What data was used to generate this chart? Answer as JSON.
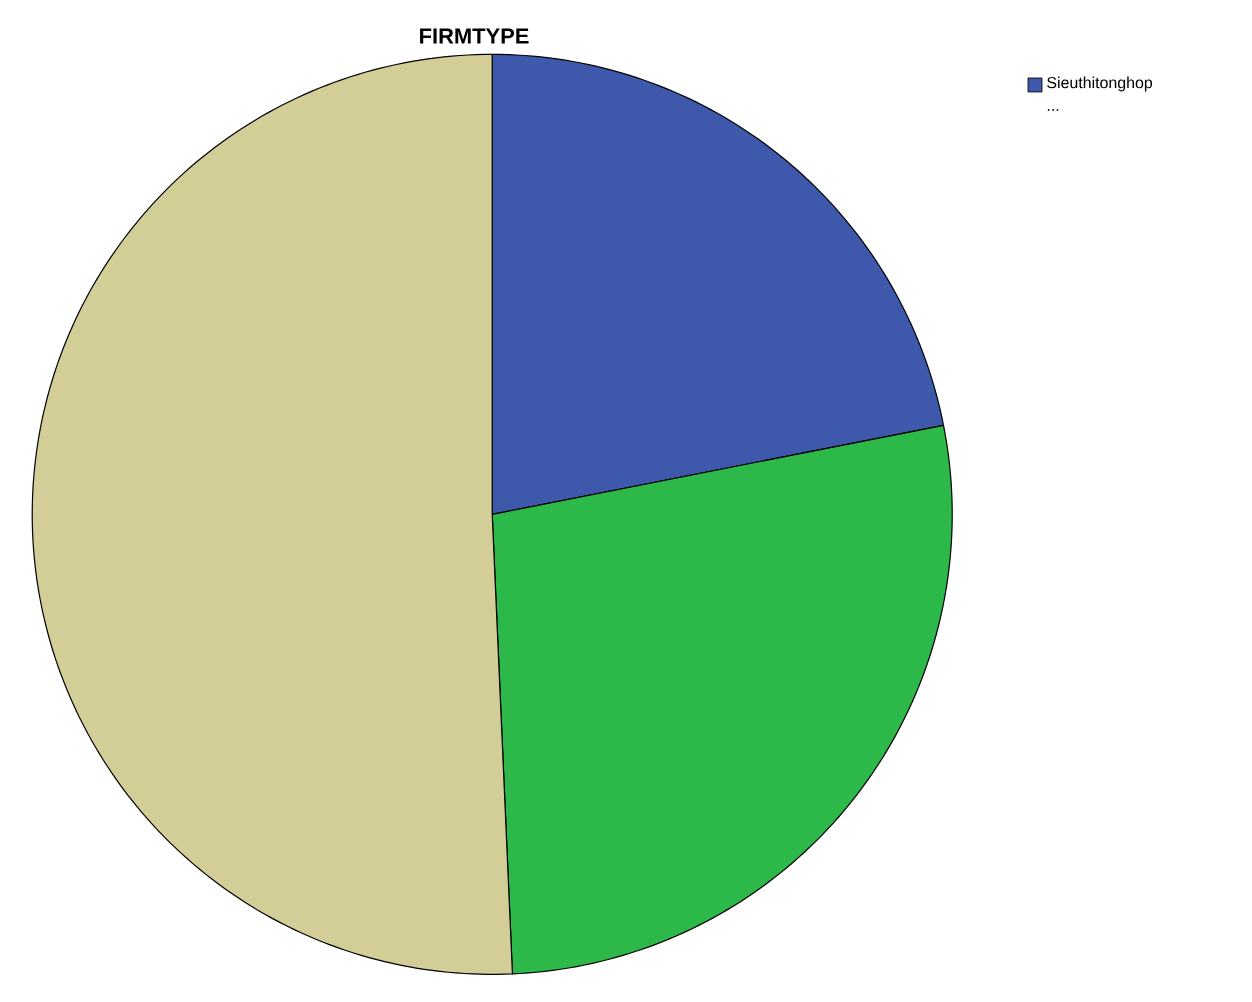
{
  "chart_data": {
    "type": "pie",
    "title": "FIRMTYPE",
    "categories": [
      "Sieuthitonghop",
      null,
      null
    ],
    "values": [
      21.9,
      27.4,
      50.7
    ],
    "colors": [
      "#3e58ac",
      "#2db84a",
      "#d3ce97"
    ],
    "legend": "top right",
    "annotations": [
      "..."
    ]
  }
}
